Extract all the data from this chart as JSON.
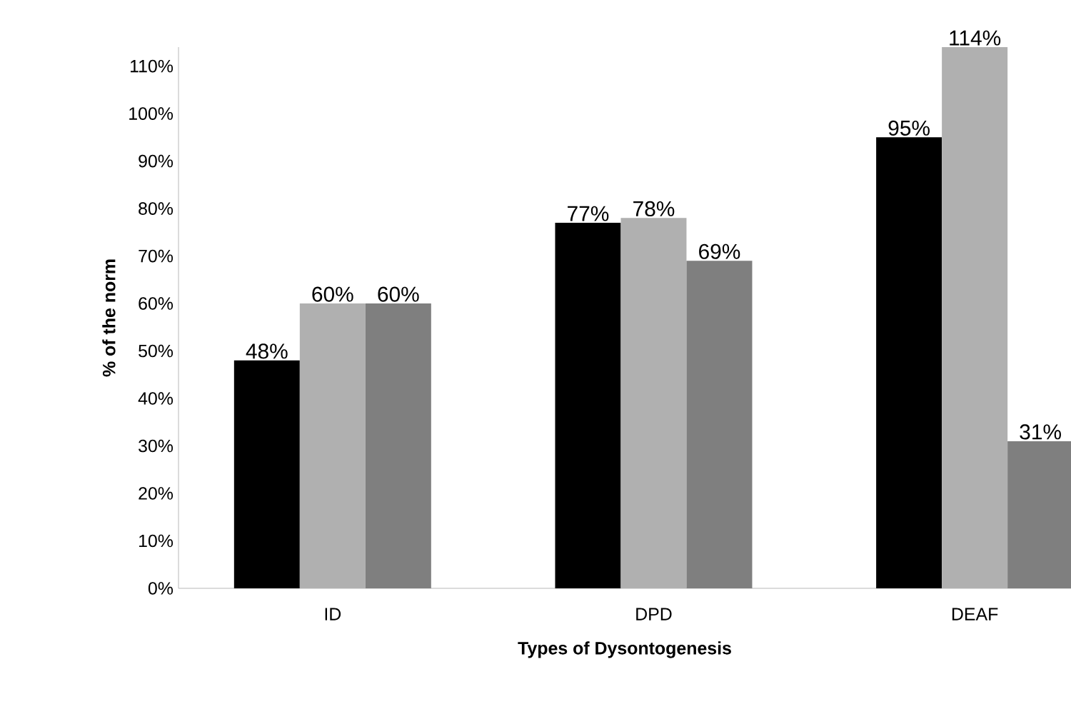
{
  "chart_data": {
    "type": "bar",
    "xlabel": "Types of Dysontogenesis",
    "ylabel": "% of the norm",
    "categories": [
      "ID",
      "DPD",
      "DEAF"
    ],
    "series": [
      {
        "color": "#000000",
        "values": [
          48,
          77,
          95
        ],
        "value_labels": [
          "48%",
          "77%",
          "95%"
        ]
      },
      {
        "color": "#b0b0b0",
        "values": [
          60,
          78,
          114
        ],
        "value_labels": [
          "60%",
          "78%",
          "114%"
        ]
      },
      {
        "color": "#7f7f7f",
        "values": [
          60,
          69,
          31
        ],
        "value_labels": [
          "60%",
          "69%",
          "31%"
        ]
      }
    ],
    "ylim": [
      0,
      114
    ],
    "yticks": [
      {
        "value": 0,
        "label": "0%"
      },
      {
        "value": 10,
        "label": "10%"
      },
      {
        "value": 20,
        "label": "20%"
      },
      {
        "value": 30,
        "label": "30%"
      },
      {
        "value": 40,
        "label": "40%"
      },
      {
        "value": 50,
        "label": "50%"
      },
      {
        "value": 60,
        "label": "60%"
      },
      {
        "value": 70,
        "label": "70%"
      },
      {
        "value": 80,
        "label": "80%"
      },
      {
        "value": 90,
        "label": "90%"
      },
      {
        "value": 100,
        "label": "100%"
      },
      {
        "value": 110,
        "label": "110%"
      }
    ],
    "grid": false
  }
}
